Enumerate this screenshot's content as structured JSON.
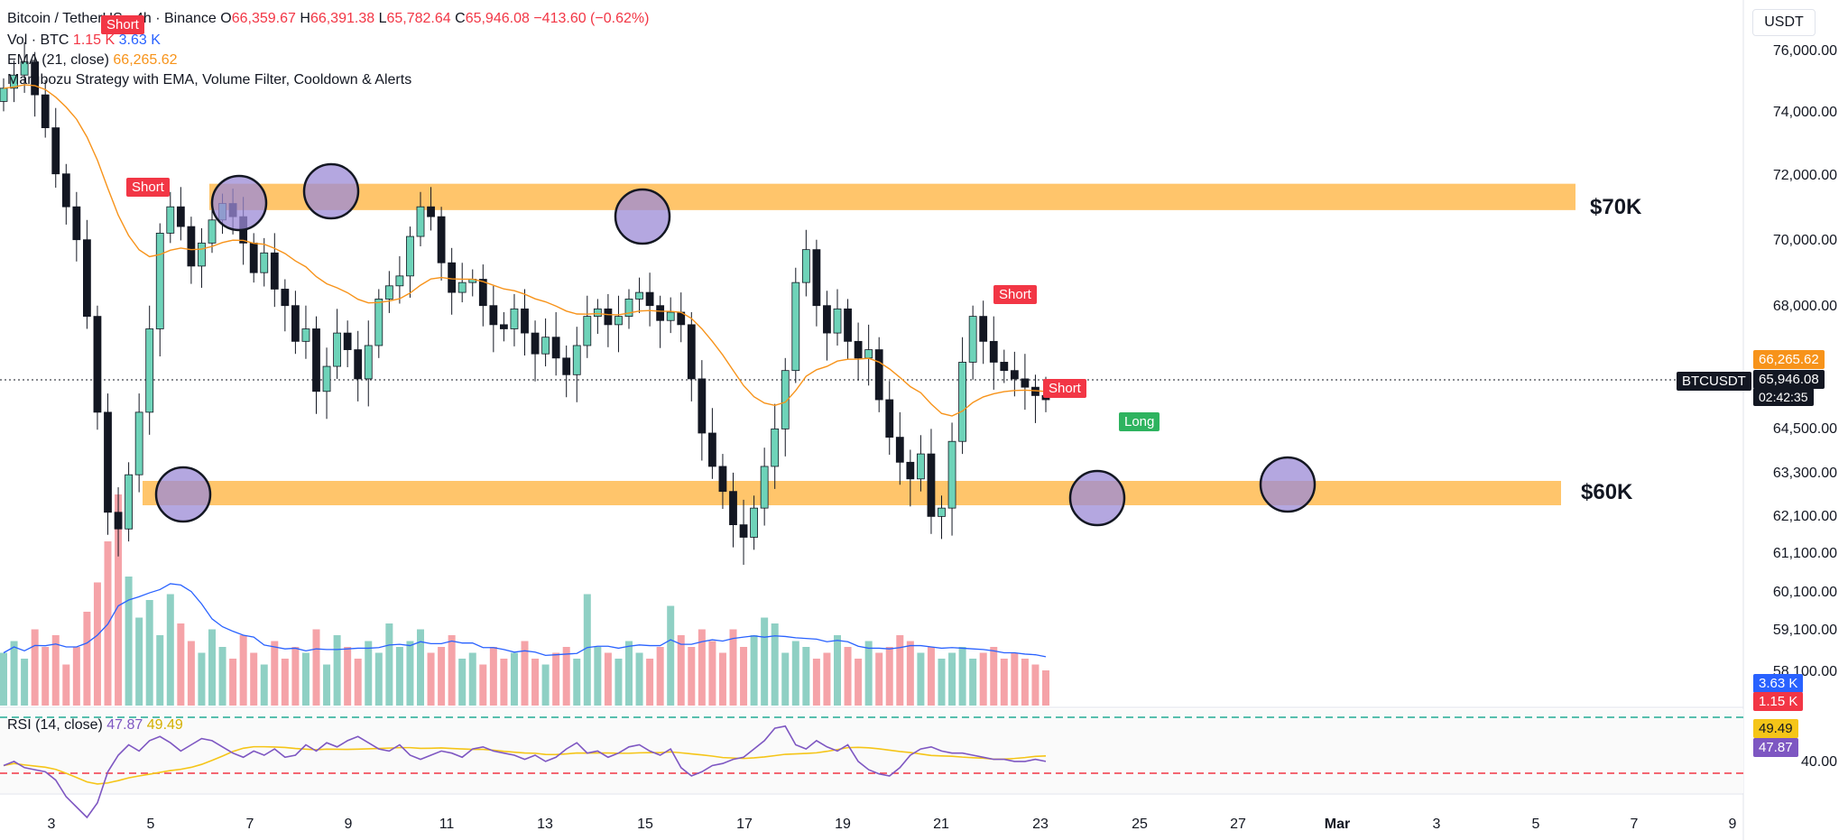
{
  "header": {
    "symbol_line": "Bitcoin / TetherUS · 4h · Binance",
    "open_label": "O",
    "open": "66,359.67",
    "high_label": "H",
    "high": "66,391.38",
    "low_label": "L",
    "low": "65,782.64",
    "close_label": "C",
    "close": "65,946.08",
    "change": "−413.60 (−0.62%)",
    "vol_label": "Vol · BTC",
    "vol_a": "1.15 K",
    "vol_b": "3.63 K",
    "ema_label": "EMA (21, close)",
    "ema_value": "66,265.62",
    "strategy_label": "Marubozu Strategy with EMA, Volume Filter, Cooldown & Alerts",
    "rsi_label": "RSI (14, close)",
    "rsi_value": "47.87",
    "rsi_ma": "49.49"
  },
  "currency": "USDT",
  "price_axis": [
    "76,000.00",
    "74,000.00",
    "72,000.00",
    "70,000.00",
    "68,000.00",
    "64,500.00",
    "63,300.00",
    "62,100.00",
    "61,100.00",
    "60,100.00",
    "59,100.00",
    "58,100.00"
  ],
  "rsi_axis": [
    "40.00"
  ],
  "time_axis": [
    "3",
    "5",
    "7",
    "9",
    "11",
    "13",
    "15",
    "17",
    "19",
    "21",
    "23",
    "25",
    "27",
    "Mar",
    "3",
    "5",
    "7",
    "9"
  ],
  "badges": {
    "ema": "66,265.62",
    "symbol": "BTCUSDT",
    "last": "65,946.08",
    "countdown": "02:42:35",
    "vol_a": "3.63 K",
    "vol_b": "1.15 K",
    "rsi_ma": "49.49",
    "rsi": "47.87"
  },
  "annotations": {
    "high_zone": "$70K",
    "low_zone": "$60K",
    "signals": [
      "Short",
      "Short",
      "Short",
      "Short",
      "Long"
    ]
  },
  "colors": {
    "up": "#22ab94",
    "down": "#f23645",
    "ema": "#f7931a",
    "zone": "#ffc56b",
    "circle": "#9b8ad6"
  },
  "chart_data": {
    "type": "candlestick",
    "title": "Bitcoin / TetherUS · 4h · Binance",
    "last_close": 65946.08,
    "ema21": 66265.62,
    "zones": [
      {
        "label": "$70K",
        "from": 71900,
        "to": 71100
      },
      {
        "label": "$60K",
        "from": 62900,
        "to": 62400
      }
    ],
    "candles_close": [
      74800,
      75200,
      75600,
      74600,
      73600,
      72200,
      71200,
      70200,
      67900,
      65600,
      63200,
      62800,
      64100,
      65600,
      67600,
      70400,
      71200,
      70600,
      69400,
      70100,
      70800,
      71300,
      70900,
      70100,
      69200,
      69800,
      68700,
      68200,
      67300,
      67600,
      66100,
      66700,
      67500,
      67100,
      66400,
      67200,
      68400,
      68800,
      69100,
      70300,
      71200,
      70900,
      69500,
      68600,
      68900,
      69000,
      68200,
      67700,
      67600,
      68100,
      67500,
      67000,
      67400,
      66900,
      66500,
      67200,
      67900,
      68100,
      67700,
      67900,
      68400,
      68600,
      68200,
      67800,
      68000,
      67700,
      66400,
      65100,
      64300,
      63700,
      62900,
      62600,
      63300,
      64300,
      65200,
      66600,
      68900,
      69900,
      68200,
      67500,
      68100,
      67300,
      66900,
      67100,
      65900,
      65000,
      64400,
      64000,
      64600,
      63100,
      63300,
      64900,
      66800,
      67900,
      67300,
      66800,
      66600,
      66400,
      66200,
      66000,
      65900
    ]
  },
  "volume": [
    0.9,
    1.1,
    0.8,
    1.3,
    1.0,
    1.2,
    0.7,
    1.0,
    1.6,
    2.1,
    2.8,
    3.6,
    2.2,
    1.5,
    1.8,
    1.2,
    1.9,
    1.4,
    1.1,
    0.9,
    1.3,
    1.0,
    0.8,
    1.2,
    0.9,
    0.7,
    1.1,
    0.8,
    1.0,
    0.9,
    1.3,
    0.7,
    1.2,
    1.0,
    0.8,
    1.1,
    0.9,
    1.4,
    1.0,
    1.1,
    1.3,
    0.9,
    1.0,
    1.2,
    0.8,
    0.9,
    0.7,
    1.0,
    0.8,
    0.9,
    1.1,
    0.8,
    0.7,
    0.9,
    1.0,
    0.8,
    1.9,
    1.0,
    0.9,
    0.8,
    1.1,
    0.9,
    0.8,
    1.0,
    1.7,
    1.2,
    1.0,
    1.3,
    1.1,
    0.9,
    1.3,
    1.0,
    1.2,
    1.5,
    1.4,
    0.9,
    1.1,
    1.0,
    0.8,
    0.9,
    1.2,
    1.0,
    0.8,
    1.1,
    0.9,
    1.0,
    1.2,
    1.1,
    0.9,
    1.0,
    0.8,
    0.9,
    1.0,
    0.8,
    0.9,
    1.0,
    0.8,
    0.9,
    0.8,
    0.7,
    0.6
  ],
  "rsi": [
    45,
    47,
    44,
    43,
    42,
    38,
    30,
    25,
    20,
    27,
    42,
    50,
    55,
    52,
    57,
    59,
    56,
    52,
    55,
    58,
    57,
    54,
    51,
    49,
    52,
    50,
    53,
    49,
    50,
    55,
    52,
    56,
    54,
    57,
    59,
    56,
    53,
    52,
    55,
    50,
    48,
    50,
    52,
    51,
    49,
    53,
    54,
    52,
    51,
    50,
    48,
    50,
    47,
    49,
    53,
    56,
    51,
    52,
    49,
    51,
    54,
    55,
    52,
    50,
    53,
    44,
    40,
    42,
    45,
    46,
    48,
    49,
    53,
    57,
    63,
    64,
    55,
    53,
    57,
    54,
    52,
    55,
    47,
    43,
    41,
    40,
    44,
    50,
    53,
    54,
    52,
    51,
    51,
    50,
    49,
    48,
    48,
    47,
    47,
    48,
    47
  ]
}
